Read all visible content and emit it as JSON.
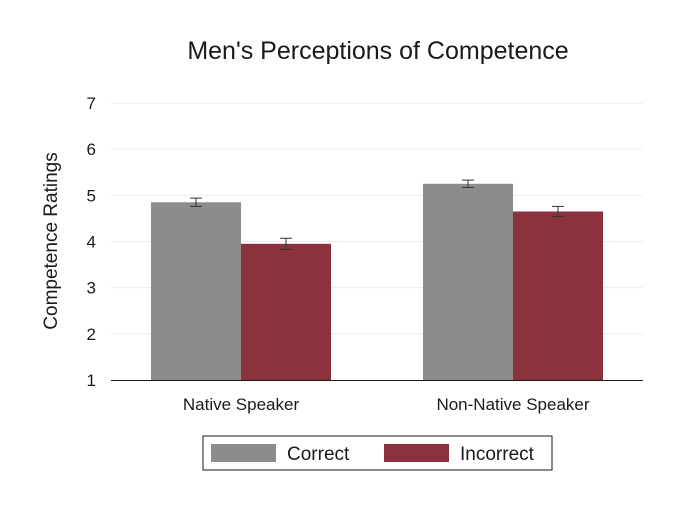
{
  "chart_data": {
    "type": "bar",
    "title": "Men's Perceptions of Competence",
    "ylabel": "Competence Ratings",
    "xlabel": "",
    "categories": [
      "Native Speaker",
      "Non-Native Speaker"
    ],
    "series": [
      {
        "name": "Correct",
        "color": "#8c8c8c",
        "values": [
          4.85,
          5.25
        ],
        "error": [
          0.09,
          0.08
        ]
      },
      {
        "name": "Incorrect",
        "color": "#8b333c",
        "values": [
          3.95,
          4.65
        ],
        "error": [
          0.12,
          0.11
        ]
      }
    ],
    "ylim": [
      1,
      7
    ],
    "yticks": [
      1,
      2,
      3,
      4,
      5,
      6,
      7
    ],
    "grid": true,
    "legend_position": "bottom-center"
  }
}
